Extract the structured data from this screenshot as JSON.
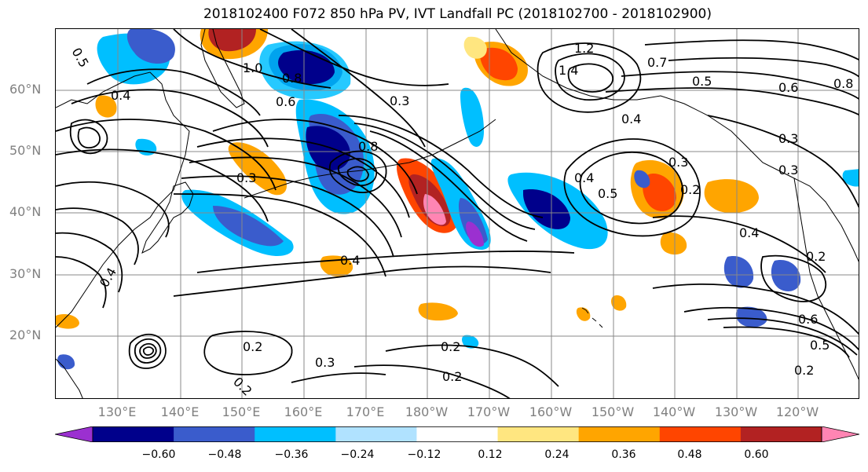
{
  "title": "2018102400 F072 850 hPa PV, IVT Landfall PC (2018102700 - 2018102900)",
  "lat_labels": [
    "60°N",
    "50°N",
    "40°N",
    "30°N",
    "20°N"
  ],
  "lon_labels": [
    "130°E",
    "140°E",
    "150°E",
    "160°E",
    "170°E",
    "180°W",
    "170°W",
    "160°W",
    "150°W",
    "140°W",
    "130°W",
    "120°W"
  ],
  "colorbar": {
    "tick_labels": [
      "−0.60",
      "−0.48",
      "−0.36",
      "−0.24",
      "−0.12",
      "0.12",
      "0.24",
      "0.36",
      "0.48",
      "0.60"
    ],
    "colors": [
      "#9b30d0",
      "#00008b",
      "#3a5ccc",
      "#00bfff",
      "#b0e2ff",
      "#ffffff",
      "#ffe680",
      "#ffa500",
      "#ff4500",
      "#b22222",
      "#ff85b3"
    ]
  },
  "contour_labels": [
    "0.5",
    "0.4",
    "1.0",
    "0.8",
    "0.6",
    "0.3",
    "1.2",
    "1.4",
    "0.7",
    "0.5",
    "0.6",
    "0.8",
    "0.4",
    "0.3",
    "0.3",
    "0.2",
    "0.4",
    "0.3",
    "0.4",
    "0.2",
    "0.2",
    "0.2",
    "0.3",
    "0.2",
    "0.6",
    "0.5",
    "0.2",
    "0.4",
    "0.2",
    "0.4",
    "0.5",
    "0.8",
    "0.3"
  ]
}
